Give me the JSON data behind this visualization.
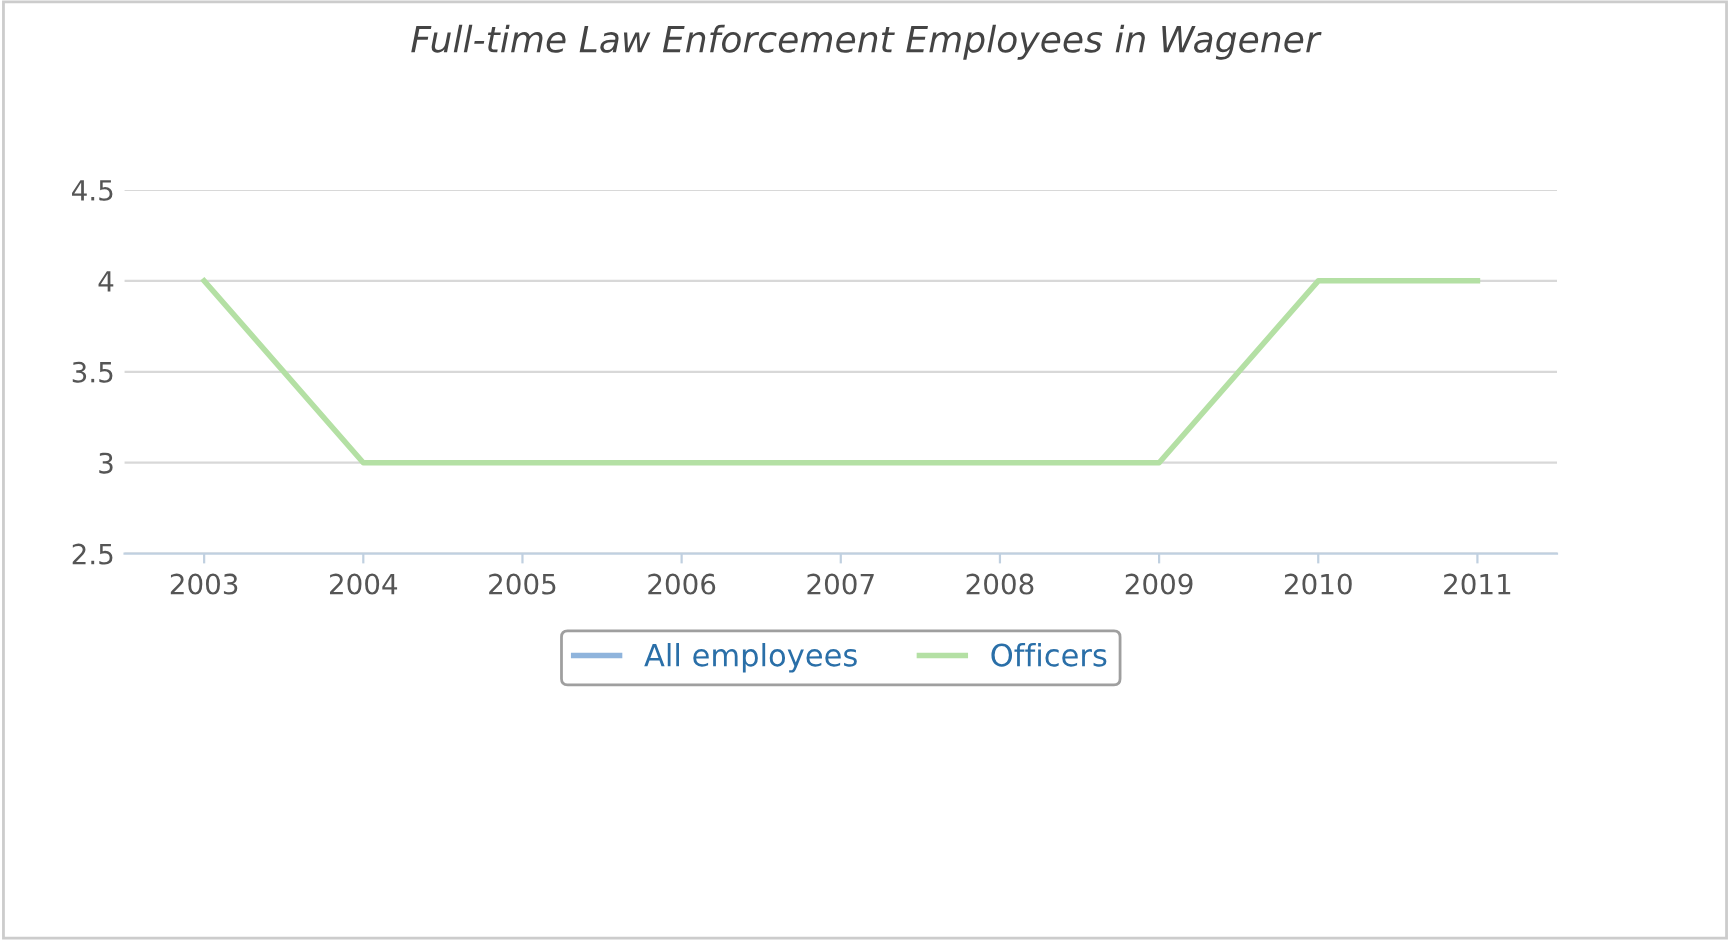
{
  "chart_data": {
    "type": "line",
    "title": "Full-time Law Enforcement Employees in Wagener",
    "categories": [
      "2003",
      "2004",
      "2005",
      "2006",
      "2007",
      "2008",
      "2009",
      "2010",
      "2011"
    ],
    "series": [
      {
        "name": "All employees",
        "color": "#8fb4dc",
        "values": [
          null,
          null,
          null,
          null,
          null,
          null,
          null,
          null,
          null
        ]
      },
      {
        "name": "Officers",
        "color": "#b4e0a4",
        "values": [
          4,
          3,
          3,
          3,
          3,
          3,
          3,
          4,
          4
        ]
      }
    ],
    "ylim": [
      2.5,
      4.5
    ],
    "yticks": [
      2.5,
      3,
      3.5,
      4,
      4.5
    ],
    "grid": "y",
    "legend": "bottom",
    "marker": "none",
    "line_style": "solid"
  }
}
